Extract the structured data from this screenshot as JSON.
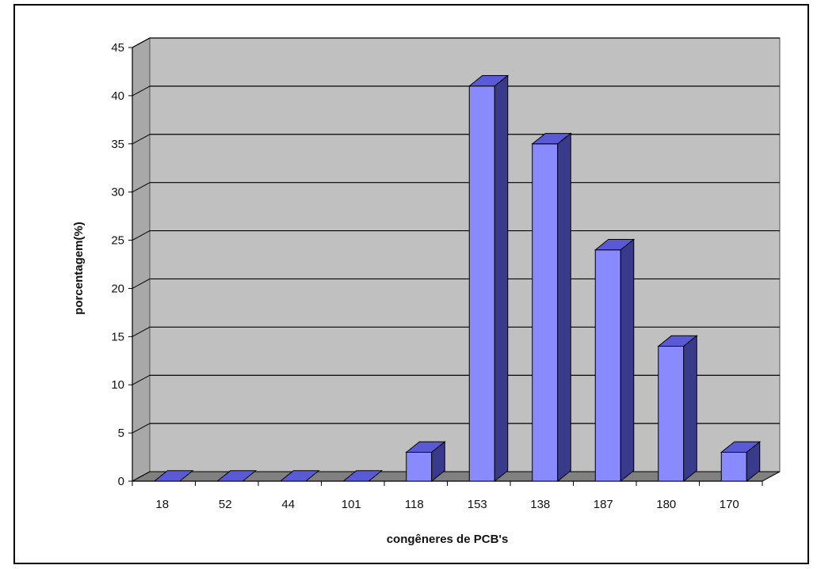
{
  "chart_data": {
    "type": "bar",
    "title": "",
    "xlabel": "congêneres de PCB's",
    "ylabel": "porcentagem(%)",
    "categories": [
      "18",
      "52",
      "44",
      "101",
      "118",
      "153",
      "138",
      "187",
      "180",
      "170"
    ],
    "values": [
      0,
      0,
      0,
      0,
      3,
      41,
      35,
      24,
      14,
      3
    ],
    "ylim": [
      0,
      45
    ],
    "yticks": [
      "0",
      "5",
      "10",
      "15",
      "20",
      "25",
      "30",
      "35",
      "40",
      "45"
    ],
    "grid": true,
    "legend": "none",
    "style": "3d-column"
  },
  "colors": {
    "plot_wall": "#c0c0c0",
    "floor": "#808080",
    "bar_front": "#8a8aff",
    "bar_top": "#5a5ad6",
    "bar_side": "#3a3a8c",
    "grid": "#000000"
  }
}
